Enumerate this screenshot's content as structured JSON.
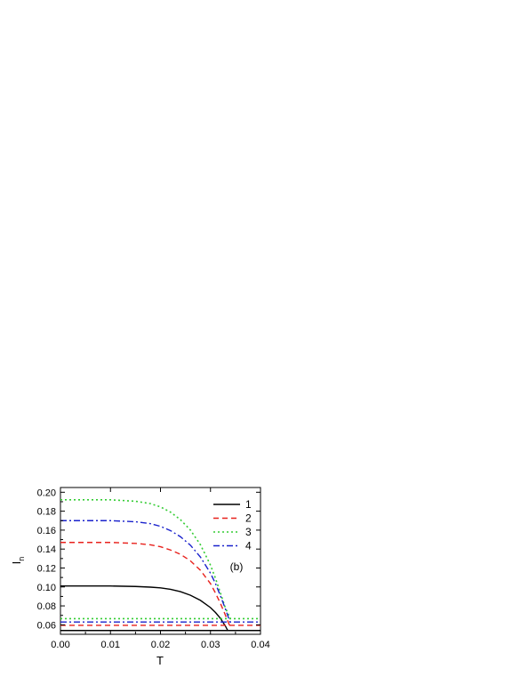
{
  "chart_data": {
    "type": "line",
    "xlabel": "T",
    "ylabel": "I",
    "ylabel_sub": "n",
    "xlim": [
      0.0,
      0.04
    ],
    "ylim": [
      0.05,
      0.205
    ],
    "x_ticks": [
      "0.00",
      "0.01",
      "0.02",
      "0.03",
      "0.04"
    ],
    "x_tick_values": [
      0.0,
      0.01,
      0.02,
      0.03,
      0.04
    ],
    "y_ticks": [
      "0.06",
      "0.08",
      "0.10",
      "0.12",
      "0.14",
      "0.16",
      "0.18",
      "0.20"
    ],
    "y_tick_values": [
      0.06,
      0.08,
      0.1,
      0.12,
      0.14,
      0.16,
      0.18,
      0.2
    ],
    "grid": false,
    "legend_position": "top-right",
    "annotation": "(b)",
    "series": [
      {
        "name": "1",
        "color": "#000000",
        "style": "solid",
        "x": [
          0.0,
          0.005,
          0.01,
          0.015,
          0.018,
          0.02,
          0.022,
          0.024,
          0.026,
          0.028,
          0.03,
          0.031,
          0.032,
          0.033,
          0.0335
        ],
        "y": [
          0.101,
          0.101,
          0.101,
          0.1005,
          0.0998,
          0.099,
          0.0975,
          0.095,
          0.0912,
          0.0858,
          0.0782,
          0.073,
          0.0668,
          0.0585,
          0.0535
        ],
        "flat_x": [
          0.0,
          0.04
        ],
        "flat_y": [
          0.054,
          0.054
        ]
      },
      {
        "name": "2",
        "color": "#e8211c",
        "style": "dashed",
        "x": [
          0.0,
          0.005,
          0.01,
          0.015,
          0.018,
          0.02,
          0.022,
          0.024,
          0.026,
          0.028,
          0.03,
          0.031,
          0.032,
          0.033,
          0.0338
        ],
        "y": [
          0.147,
          0.147,
          0.147,
          0.146,
          0.1445,
          0.1425,
          0.139,
          0.1345,
          0.1275,
          0.1175,
          0.1035,
          0.0935,
          0.0825,
          0.07,
          0.0595
        ],
        "flat_x": [
          0.0,
          0.04
        ],
        "flat_y": [
          0.0595,
          0.0595
        ]
      },
      {
        "name": "3",
        "color": "#33cc33",
        "style": "dotted",
        "x": [
          0.0,
          0.005,
          0.01,
          0.015,
          0.018,
          0.02,
          0.022,
          0.024,
          0.026,
          0.028,
          0.03,
          0.031,
          0.032,
          0.033,
          0.034
        ],
        "y": [
          0.192,
          0.192,
          0.192,
          0.1905,
          0.188,
          0.1845,
          0.179,
          0.171,
          0.16,
          0.1445,
          0.123,
          0.109,
          0.0935,
          0.0775,
          0.0665
        ],
        "flat_x": [
          0.0,
          0.04
        ],
        "flat_y": [
          0.0665,
          0.0665
        ]
      },
      {
        "name": "4",
        "color": "#1a22cc",
        "style": "dashdot",
        "x": [
          0.0,
          0.005,
          0.01,
          0.015,
          0.018,
          0.02,
          0.022,
          0.024,
          0.026,
          0.028,
          0.03,
          0.031,
          0.032,
          0.033,
          0.0339
        ],
        "y": [
          0.17,
          0.17,
          0.17,
          0.1688,
          0.1668,
          0.164,
          0.1595,
          0.153,
          0.144,
          0.1315,
          0.1145,
          0.1035,
          0.0905,
          0.0765,
          0.063
        ],
        "flat_x": [
          0.0,
          0.04
        ],
        "flat_y": [
          0.063,
          0.063
        ]
      }
    ]
  }
}
